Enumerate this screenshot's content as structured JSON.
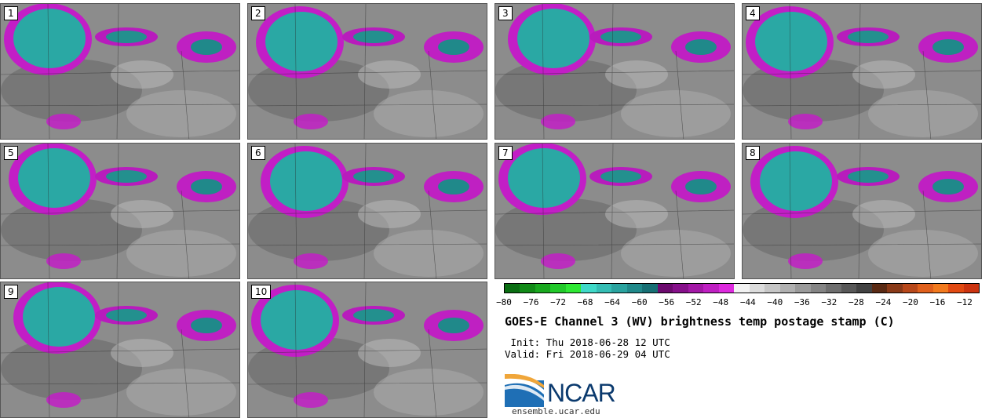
{
  "panels": [
    {
      "label": "1"
    },
    {
      "label": "2"
    },
    {
      "label": "3"
    },
    {
      "label": "4"
    },
    {
      "label": "5"
    },
    {
      "label": "6"
    },
    {
      "label": "7"
    },
    {
      "label": "8"
    },
    {
      "label": "9"
    },
    {
      "label": "10"
    }
  ],
  "colorbar": {
    "ticks": [
      "−80",
      "−76",
      "−72",
      "−68",
      "−64",
      "−60",
      "−56",
      "−52",
      "−48",
      "−44",
      "−40",
      "−36",
      "−32",
      "−28",
      "−24",
      "−20",
      "−16",
      "−12"
    ],
    "range": [
      -80,
      -10
    ],
    "colors": [
      "#0a6e12",
      "#118a17",
      "#19a81f",
      "#22c92a",
      "#2ee834",
      "#3fd9c8",
      "#35bdb4",
      "#2aa39f",
      "#20898a",
      "#176f74",
      "#6c0a6e",
      "#86108a",
      "#a318a6",
      "#bf20c2",
      "#dd2ade",
      "#f2f2f2",
      "#dcdcdc",
      "#c6c6c6",
      "#b0b0b0",
      "#9a9a9a",
      "#848484",
      "#6e6e6e",
      "#585858",
      "#424242",
      "#5a2a14",
      "#8a3a18",
      "#b8481a",
      "#e0601c",
      "#f27a1e",
      "#e24a12",
      "#cc3410"
    ]
  },
  "title": "GOES-E Channel 3 (WV) brightness temp postage stamp (C)",
  "init": " Init: Thu 2018-06-28 12 UTC",
  "valid": "Valid: Fri 2018-06-29 04 UTC",
  "logo": {
    "text": "NCAR",
    "url": "ensemble.ucar.edu",
    "color": "#0b3a6e"
  }
}
